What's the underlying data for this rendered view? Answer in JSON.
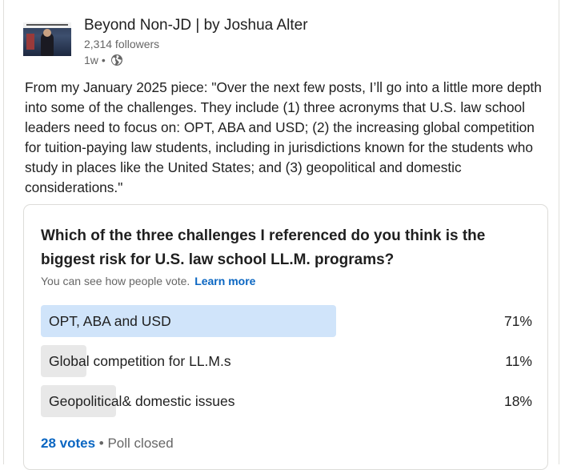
{
  "author": {
    "name": "Beyond Non-JD | by Joshua Alter",
    "followers": "2,314 followers",
    "time": "1w",
    "separator": "•",
    "visibility_icon": "globe-icon"
  },
  "post": {
    "text": "From my January 2025 piece: \"Over the next few posts, I’ll go into a little more depth into some of the challenges. They include (1) three acronyms that U.S. law school leaders need to focus on: OPT, ABA and USD; (2) the increasing global competition for tuition-paying law students, including in jurisdictions known for the students who study in places like the United States; and (3) geopolitical and domestic considerations.\""
  },
  "poll": {
    "question": "Which of the three challenges I referenced do you think is the biggest risk for U.S. law school LL.M. programs?",
    "visibility_note": "You can see how people vote.",
    "learn_more": "Learn more",
    "options": [
      {
        "label": "OPT, ABA and USD",
        "percent_label": "71%",
        "percent": 71,
        "winner": true
      },
      {
        "label": "Global competition for LL.M.s",
        "percent_label": "11%",
        "percent": 11,
        "winner": false
      },
      {
        "label": "Geopolitical& domestic issues",
        "percent_label": "18%",
        "percent": 18,
        "winner": false
      }
    ],
    "votes": "28 votes",
    "separator": "•",
    "status": "Poll closed"
  },
  "colors": {
    "accent": "#0a66c2",
    "winner_fill": "#d0e4fa",
    "loser_fill": "#e8e8e8"
  }
}
